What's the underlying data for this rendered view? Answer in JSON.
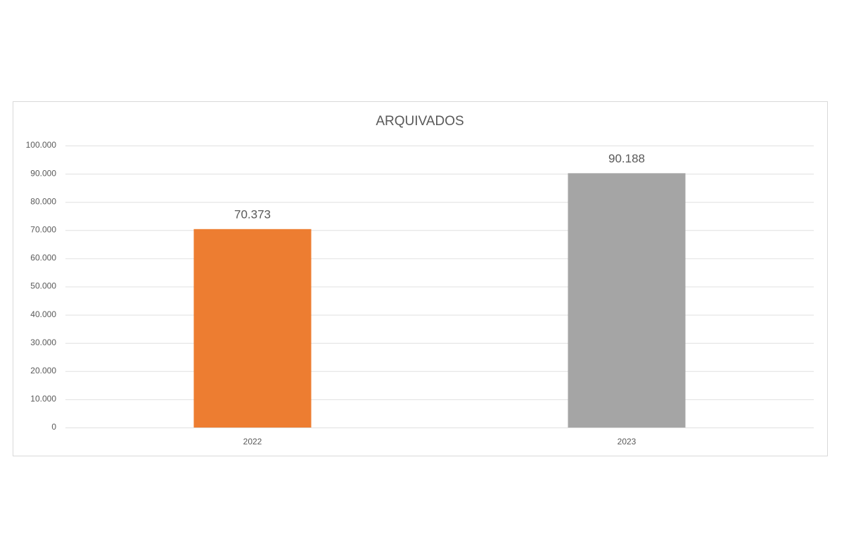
{
  "chart_data": {
    "type": "bar",
    "title": "ARQUIVADOS",
    "categories": [
      "2022",
      "2023"
    ],
    "values": [
      70373,
      90188
    ],
    "value_labels": [
      "70.373",
      "90.188"
    ],
    "colors": [
      "#ed7d31",
      "#a5a5a5"
    ],
    "ylim": [
      0,
      100000
    ],
    "yticks": [
      0,
      {
        "value": 10000,
        "label": "10.000"
      },
      {
        "value": 20000,
        "label": "20.000"
      },
      {
        "value": 30000,
        "label": "30.000"
      },
      {
        "value": 40000,
        "label": "40.000"
      },
      {
        "value": 50000,
        "label": "50.000"
      },
      {
        "value": 60000,
        "label": "60.000"
      },
      {
        "value": 70000,
        "label": "70.000"
      },
      {
        "value": 80000,
        "label": "80.000"
      },
      {
        "value": 90000,
        "label": "90.000"
      },
      {
        "value": 100000,
        "label": "100.000"
      }
    ],
    "grid": true
  }
}
